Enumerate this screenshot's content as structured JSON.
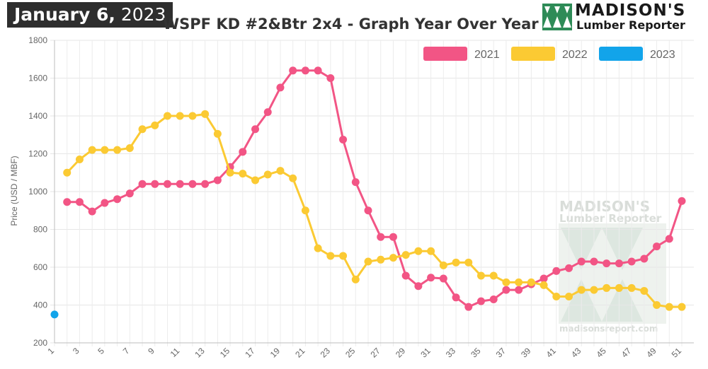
{
  "header": {
    "date_month_day": "January 6,",
    "date_year": "2023",
    "title": "WSPF KD #2&Btr 2x4 - Graph Year Over Year"
  },
  "logo": {
    "brand": "MADISON'S",
    "sub": "Lumber Reporter"
  },
  "watermark": {
    "brand": "MADISON'S",
    "sub": "Lumber Reporter",
    "url": "madisonsreport.com"
  },
  "chart_data": {
    "type": "line",
    "title": "WSPF KD #2&Btr 2x4 - Graph Year Over Year",
    "ylabel": "Price (USD / MBF)",
    "xlabel": "",
    "xlim": [
      1,
      51
    ],
    "ylim": [
      200,
      1800
    ],
    "y_ticks": [
      200,
      400,
      600,
      800,
      1000,
      1200,
      1400,
      1600,
      1800
    ],
    "x_ticks": [
      1,
      3,
      5,
      7,
      9,
      11,
      13,
      15,
      17,
      19,
      21,
      23,
      25,
      27,
      29,
      31,
      33,
      35,
      37,
      39,
      41,
      43,
      45,
      47,
      49,
      51
    ],
    "grid": true,
    "legend_position": "top-right",
    "series": [
      {
        "name": "2021",
        "color": "#f25585",
        "x": [
          2,
          3,
          4,
          5,
          6,
          7,
          8,
          9,
          10,
          11,
          12,
          13,
          14,
          15,
          16,
          17,
          18,
          19,
          20,
          21,
          22,
          23,
          24,
          25,
          26,
          27,
          28,
          29,
          30,
          31,
          32,
          33,
          34,
          35,
          36,
          37,
          38,
          39,
          40,
          41,
          42,
          43,
          44,
          45,
          46,
          47,
          48,
          49,
          50,
          51
        ],
        "y": [
          945,
          945,
          895,
          940,
          960,
          990,
          1040,
          1040,
          1040,
          1040,
          1040,
          1040,
          1060,
          1130,
          1210,
          1330,
          1420,
          1550,
          1640,
          1640,
          1640,
          1600,
          1275,
          1050,
          900,
          760,
          760,
          555,
          500,
          545,
          540,
          440,
          390,
          420,
          430,
          480,
          480,
          510,
          540,
          580,
          595,
          630,
          630,
          620,
          620,
          630,
          645,
          710,
          750,
          950
        ]
      },
      {
        "name": "2022",
        "color": "#fbca33",
        "x": [
          2,
          3,
          4,
          5,
          6,
          7,
          8,
          9,
          10,
          11,
          12,
          13,
          14,
          15,
          16,
          17,
          18,
          19,
          20,
          21,
          22,
          23,
          24,
          25,
          26,
          27,
          28,
          29,
          30,
          31,
          32,
          33,
          34,
          35,
          36,
          37,
          38,
          39,
          40,
          41,
          42,
          43,
          44,
          45,
          46,
          47,
          48,
          49,
          50,
          51
        ],
        "y": [
          1100,
          1170,
          1220,
          1220,
          1220,
          1230,
          1330,
          1350,
          1400,
          1400,
          1400,
          1410,
          1305,
          1100,
          1095,
          1060,
          1090,
          1110,
          1070,
          900,
          700,
          660,
          660,
          535,
          630,
          640,
          650,
          665,
          685,
          685,
          610,
          625,
          625,
          555,
          555,
          520,
          520,
          520,
          505,
          445,
          445,
          480,
          480,
          490,
          490,
          490,
          475,
          400,
          390,
          390
        ]
      },
      {
        "name": "2023",
        "color": "#12a4ea",
        "x": [
          1
        ],
        "y": [
          350
        ]
      }
    ]
  }
}
